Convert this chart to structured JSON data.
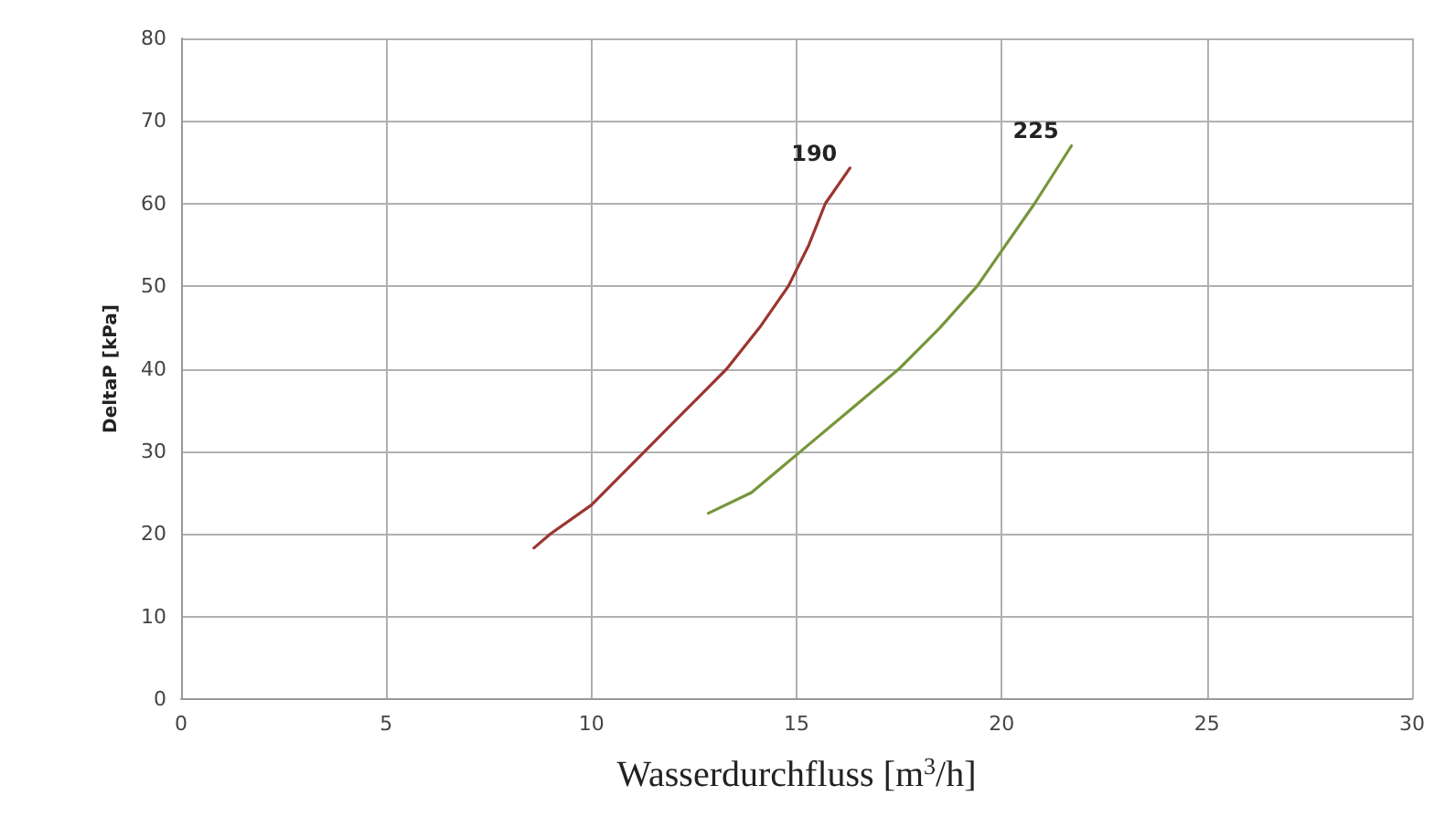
{
  "chart_data": {
    "type": "line",
    "xlabel": "Wasserdurchfluss [m$^{3}$/h]",
    "ylabel": "DeltaP [kPa]",
    "xlim": [
      0,
      30
    ],
    "xticks": [
      0,
      5,
      10,
      15,
      20,
      25,
      30
    ],
    "ylim": [
      0,
      80
    ],
    "yticks": [
      0,
      10,
      20,
      30,
      40,
      50,
      60,
      70,
      80
    ],
    "grid": true,
    "legend": false,
    "marker": "none",
    "line_style": "solid",
    "series": [
      {
        "name": "190",
        "color": "#9b3530",
        "x": [
          8.6,
          9.0,
          10,
          11.3,
          12.3,
          13.3,
          14.1,
          14.8,
          15.3,
          15.7,
          16.3
        ],
        "values": [
          18.3,
          20,
          23.5,
          30,
          35,
          40,
          45,
          50,
          55,
          60,
          64.3
        ]
      },
      {
        "name": "225",
        "color": "#76963a",
        "x": [
          12.85,
          13.9,
          15.1,
          16.3,
          17.5,
          18.5,
          19.4,
          20.1,
          20.8,
          21.7
        ],
        "values": [
          22.5,
          25,
          30,
          35,
          40,
          45,
          50,
          55,
          60,
          67
        ]
      }
    ]
  }
}
